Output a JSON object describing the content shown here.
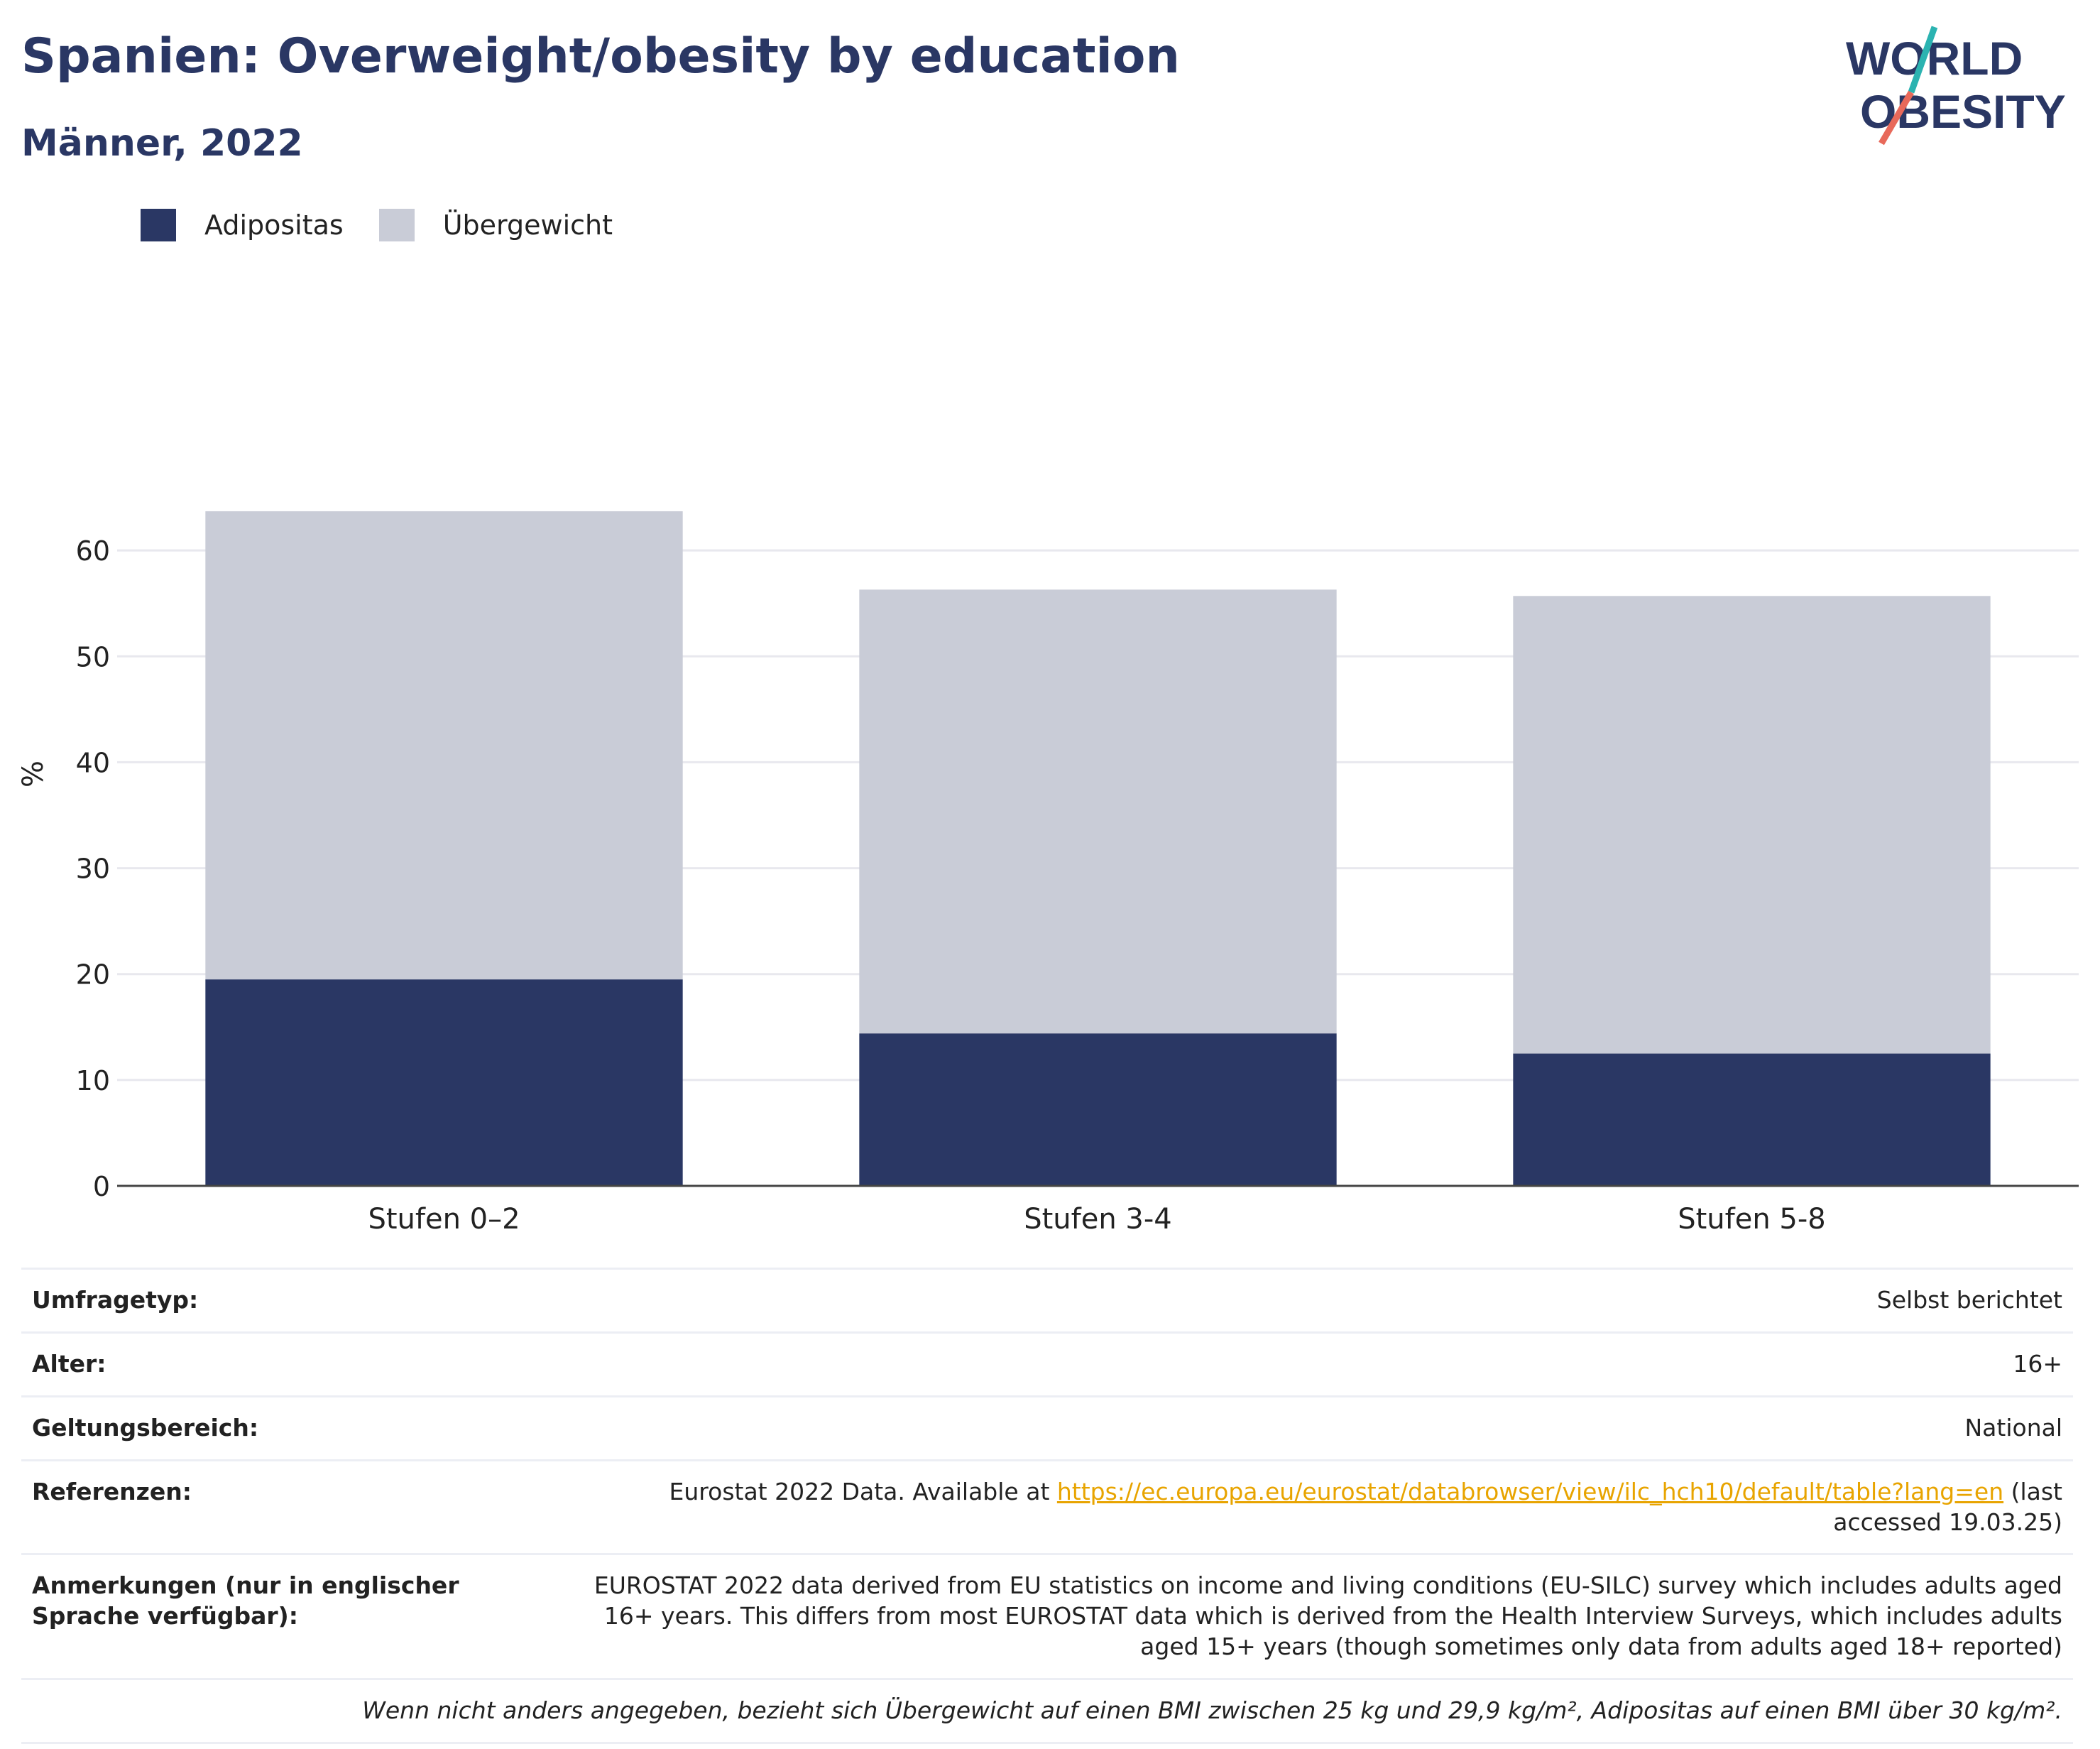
{
  "header": {
    "title": "Spanien: Overweight/obesity by education",
    "subtitle": "Männer, 2022"
  },
  "logo": {
    "line1": "WORLD",
    "line2": "OBESITY",
    "colors": {
      "text": "#2a3764",
      "slash_teal": "#2bb3b1",
      "slash_red": "#e8695a"
    }
  },
  "legend": [
    {
      "label": "Adipositas",
      "color": "#2a3764"
    },
    {
      "label": "Übergewicht",
      "color": "#c9ccd7"
    }
  ],
  "chart_data": {
    "type": "bar",
    "stacked": true,
    "title": "",
    "xlabel": "",
    "ylabel": "%",
    "categories": [
      "Stufen 0–2",
      "Stufen 3-4",
      "Stufen 5-8"
    ],
    "series": [
      {
        "name": "Adipositas",
        "values": [
          19.5,
          14.4,
          12.5
        ],
        "color": "#2a3764"
      },
      {
        "name": "Übergewicht",
        "values": [
          44.2,
          41.9,
          43.2
        ],
        "color": "#c9ccd7"
      }
    ],
    "totals": [
      63.7,
      56.3,
      55.7
    ],
    "ylim": [
      0,
      70
    ],
    "yticks": [
      0,
      10,
      20,
      30,
      40,
      50,
      60
    ],
    "grid": true,
    "legend_position": "top-left"
  },
  "meta": {
    "survey_type": {
      "label": "Umfragetyp:",
      "value": "Selbst berichtet"
    },
    "age": {
      "label": "Alter:",
      "value": "16+"
    },
    "scope": {
      "label": "Geltungsbereich:",
      "value": "National"
    },
    "references": {
      "label": "Referenzen:",
      "prefix": "Eurostat 2022 Data. Available at ",
      "link": "https://ec.europa.eu/eurostat/databrowser/view/ilc_hch10/default/table?lang=en",
      "suffix": " (last accessed 19.03.25)"
    },
    "notes": {
      "label": "Anmerkungen (nur in englischer Sprache verfügbar):",
      "value": "EUROSTAT 2022 data derived from EU statistics on income and living conditions (EU-SILC) survey which includes adults aged 16+ years. This differs from most EUROSTAT data which is derived from the Health Interview Surveys, which includes adults aged 15+ years (though sometimes only data from adults aged 18+ reported)"
    },
    "footnote": "Wenn nicht anders angegeben, bezieht sich Übergewicht auf einen BMI zwischen 25 kg und 29,9 kg/m², Adipositas auf einen BMI über 30 kg/m²."
  }
}
